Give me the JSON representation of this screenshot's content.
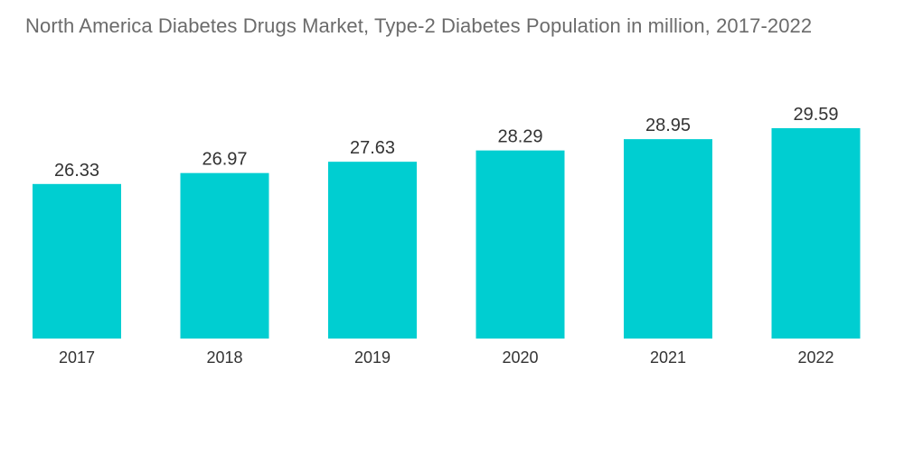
{
  "chart_data": {
    "type": "bar",
    "title": "North America Diabetes Drugs Market, Type-2 Diabetes Population in million, 2017-2022",
    "categories": [
      "2017",
      "2018",
      "2019",
      "2020",
      "2021",
      "2022"
    ],
    "values": [
      26.33,
      26.97,
      27.63,
      28.29,
      28.95,
      29.59
    ],
    "value_labels": [
      "26.33",
      "26.97",
      "27.63",
      "28.29",
      "28.95",
      "29.59"
    ],
    "xlabel": "",
    "ylabel": "",
    "ylim": [
      0,
      29.59
    ],
    "grid": false,
    "legend": "none",
    "bar_color": "#00CED1"
  }
}
